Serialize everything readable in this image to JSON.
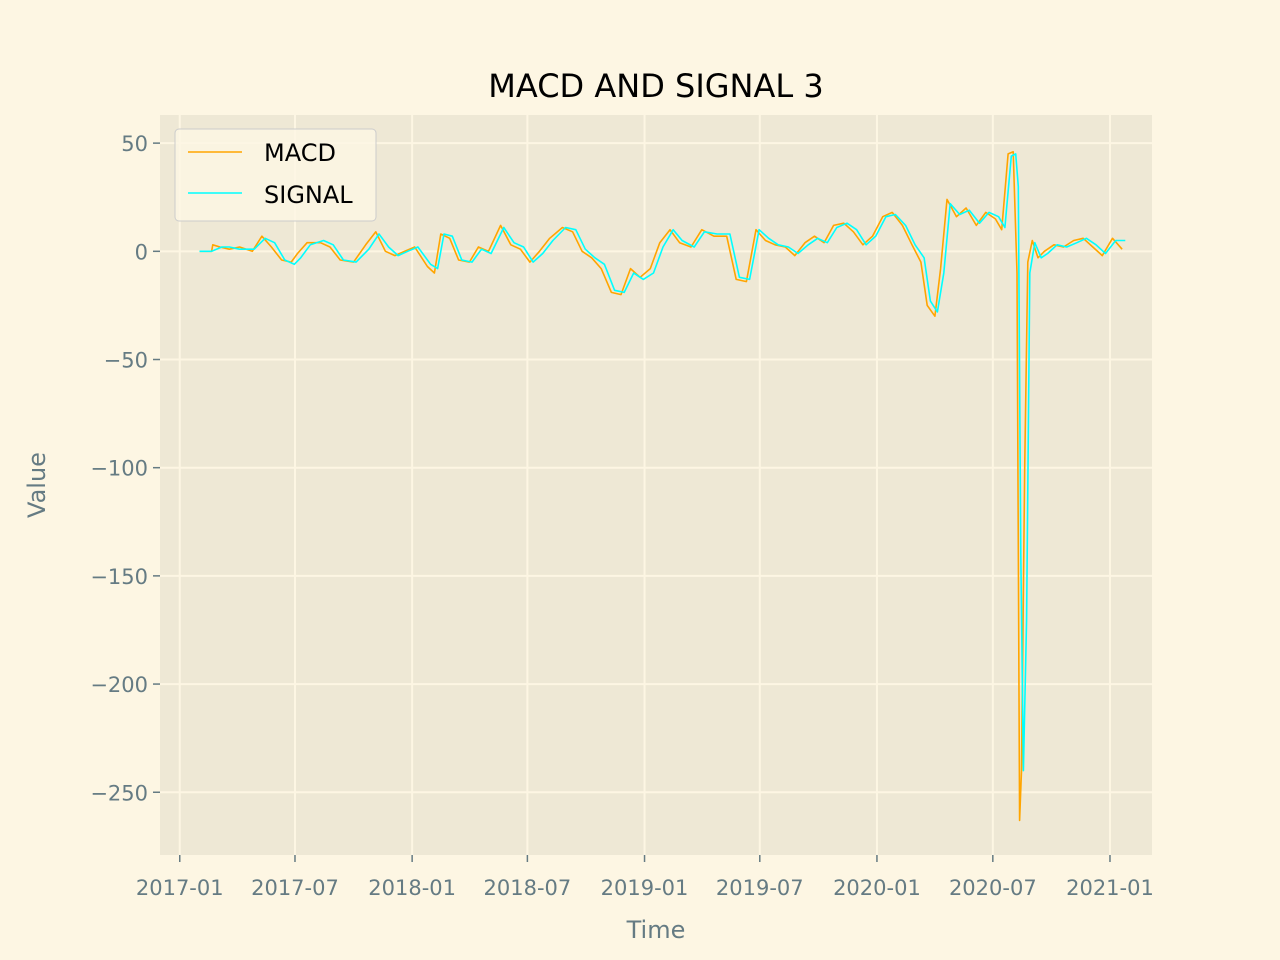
{
  "chart_data": {
    "type": "line",
    "title": "MACD AND SIGNAL 3",
    "xlabel": "Time",
    "ylabel": "Value",
    "x_ticks": [
      {
        "date": "2017-01-01",
        "label": "2017-01"
      },
      {
        "date": "2017-07-01",
        "label": "2017-07"
      },
      {
        "date": "2018-01-01",
        "label": "2018-01"
      },
      {
        "date": "2018-07-01",
        "label": "2018-07"
      },
      {
        "date": "2019-01-01",
        "label": "2019-01"
      },
      {
        "date": "2019-07-01",
        "label": "2019-07"
      },
      {
        "date": "2020-01-01",
        "label": "2020-01"
      },
      {
        "date": "2020-07-01",
        "label": "2020-07"
      },
      {
        "date": "2021-01-01",
        "label": "2021-01"
      }
    ],
    "y_ticks": [
      {
        "value": 50,
        "label": "50"
      },
      {
        "value": 0,
        "label": "0"
      },
      {
        "value": -50,
        "label": "−50"
      },
      {
        "value": -100,
        "label": "−100"
      },
      {
        "value": -150,
        "label": "−150"
      },
      {
        "value": -200,
        "label": "−200"
      },
      {
        "value": -250,
        "label": "−250"
      }
    ],
    "xlim": [
      "2016-12-01",
      "2021-03-08"
    ],
    "ylim": [
      -279,
      63
    ],
    "grid": true,
    "legend_position": "top-left",
    "colors": {
      "figure_bg": "#fdf6e3",
      "plot_bg": "#eee8d5",
      "grid": "#fdf6e3",
      "tick_text": "#657b83",
      "macd": "#ffa500",
      "signal": "#00ffff"
    },
    "series": [
      {
        "name": "MACD",
        "color": "#ffa500",
        "x": [
          "2017-02-01",
          "2017-02-20",
          "2017-02-22",
          "2017-03-05",
          "2017-03-20",
          "2017-04-05",
          "2017-04-25",
          "2017-05-10",
          "2017-05-25",
          "2017-06-10",
          "2017-06-25",
          "2017-07-05",
          "2017-07-20",
          "2017-08-10",
          "2017-08-25",
          "2017-09-10",
          "2017-10-01",
          "2017-10-20",
          "2017-11-05",
          "2017-11-20",
          "2017-12-05",
          "2017-12-20",
          "2018-01-05",
          "2018-01-25",
          "2018-02-05",
          "2018-02-15",
          "2018-03-01",
          "2018-03-15",
          "2018-04-01",
          "2018-04-15",
          "2018-05-01",
          "2018-05-20",
          "2018-06-05",
          "2018-06-20",
          "2018-07-05",
          "2018-07-20",
          "2018-08-05",
          "2018-08-25",
          "2018-09-10",
          "2018-09-25",
          "2018-10-10",
          "2018-10-25",
          "2018-11-10",
          "2018-11-25",
          "2018-12-10",
          "2018-12-25",
          "2019-01-10",
          "2019-01-25",
          "2019-02-10",
          "2019-02-25",
          "2019-03-15",
          "2019-04-01",
          "2019-04-20",
          "2019-05-10",
          "2019-05-25",
          "2019-06-10",
          "2019-06-25",
          "2019-07-10",
          "2019-07-25",
          "2019-08-10",
          "2019-08-25",
          "2019-09-10",
          "2019-09-25",
          "2019-10-10",
          "2019-10-25",
          "2019-11-10",
          "2019-11-25",
          "2019-12-10",
          "2019-12-25",
          "2020-01-10",
          "2020-01-25",
          "2020-02-10",
          "2020-02-25",
          "2020-03-10",
          "2020-03-20",
          "2020-04-01",
          "2020-04-10",
          "2020-04-20",
          "2020-05-05",
          "2020-05-20",
          "2020-06-05",
          "2020-06-20",
          "2020-07-05",
          "2020-07-15",
          "2020-07-25",
          "2020-08-02",
          "2020-08-08",
          "2020-08-12",
          "2020-08-15",
          "2020-08-20",
          "2020-08-25",
          "2020-09-01",
          "2020-09-10",
          "2020-09-20",
          "2020-10-05",
          "2020-10-20",
          "2020-11-05",
          "2020-11-20",
          "2020-12-05",
          "2020-12-20",
          "2021-01-05",
          "2021-01-20"
        ],
        "values": [
          0,
          0,
          3,
          2,
          1,
          2,
          0,
          7,
          2,
          -4,
          -5,
          -1,
          4,
          4,
          2,
          -4,
          -5,
          3,
          9,
          0,
          -2,
          0,
          2,
          -7,
          -10,
          8,
          6,
          -4,
          -5,
          2,
          0,
          12,
          3,
          1,
          -5,
          0,
          6,
          11,
          9,
          0,
          -3,
          -8,
          -19,
          -20,
          -8,
          -12,
          -8,
          4,
          10,
          4,
          2,
          10,
          7,
          7,
          -13,
          -14,
          10,
          5,
          3,
          2,
          -2,
          4,
          7,
          4,
          12,
          13,
          9,
          3,
          7,
          16,
          18,
          12,
          3,
          -5,
          -25,
          -30,
          -8,
          24,
          16,
          20,
          12,
          18,
          15,
          10,
          45,
          46,
          -10,
          -263,
          -240,
          -100,
          -5,
          5,
          -3,
          0,
          3,
          2,
          5,
          6,
          2,
          -2,
          6,
          1
        ]
      },
      {
        "name": "SIGNAL",
        "color": "#00ffff",
        "x": [
          "2017-02-01",
          "2017-02-20",
          "2017-03-08",
          "2017-03-20",
          "2017-04-05",
          "2017-04-28",
          "2017-05-15",
          "2017-05-30",
          "2017-06-15",
          "2017-06-30",
          "2017-07-10",
          "2017-07-25",
          "2017-08-15",
          "2017-08-30",
          "2017-09-15",
          "2017-10-05",
          "2017-10-25",
          "2017-11-10",
          "2017-11-25",
          "2017-12-10",
          "2017-12-25",
          "2018-01-10",
          "2018-01-30",
          "2018-02-10",
          "2018-02-20",
          "2018-03-05",
          "2018-03-20",
          "2018-04-05",
          "2018-04-20",
          "2018-05-05",
          "2018-05-25",
          "2018-06-10",
          "2018-06-25",
          "2018-07-10",
          "2018-07-25",
          "2018-08-10",
          "2018-08-30",
          "2018-09-15",
          "2018-09-30",
          "2018-10-15",
          "2018-10-30",
          "2018-11-15",
          "2018-11-30",
          "2018-12-15",
          "2018-12-30",
          "2019-01-15",
          "2019-01-30",
          "2019-02-15",
          "2019-03-01",
          "2019-03-20",
          "2019-04-05",
          "2019-04-25",
          "2019-05-15",
          "2019-05-30",
          "2019-06-15",
          "2019-06-30",
          "2019-07-15",
          "2019-07-30",
          "2019-08-15",
          "2019-08-30",
          "2019-09-15",
          "2019-09-30",
          "2019-10-15",
          "2019-10-30",
          "2019-11-15",
          "2019-11-30",
          "2019-12-15",
          "2019-12-30",
          "2020-01-15",
          "2020-01-30",
          "2020-02-15",
          "2020-03-01",
          "2020-03-15",
          "2020-03-25",
          "2020-04-05",
          "2020-04-15",
          "2020-04-25",
          "2020-05-10",
          "2020-05-25",
          "2020-06-10",
          "2020-06-25",
          "2020-07-10",
          "2020-07-20",
          "2020-07-30",
          "2020-08-06",
          "2020-08-10",
          "2020-08-14",
          "2020-08-18",
          "2020-08-23",
          "2020-08-28",
          "2020-09-05",
          "2020-09-15",
          "2020-09-25",
          "2020-10-10",
          "2020-10-25",
          "2020-11-10",
          "2020-11-25",
          "2020-12-10",
          "2020-12-25",
          "2021-01-10",
          "2021-01-25"
        ],
        "values": [
          0,
          0,
          2,
          2,
          1,
          1,
          6,
          4,
          -4,
          -6,
          -3,
          3,
          5,
          3,
          -4,
          -5,
          1,
          8,
          2,
          -2,
          0,
          2,
          -6,
          -8,
          8,
          7,
          -4,
          -5,
          1,
          -1,
          11,
          4,
          2,
          -5,
          -1,
          5,
          11,
          10,
          1,
          -3,
          -6,
          -18,
          -19,
          -10,
          -13,
          -10,
          2,
          10,
          5,
          2,
          9,
          8,
          8,
          -12,
          -13,
          10,
          6,
          3,
          2,
          -1,
          3,
          6,
          4,
          11,
          13,
          10,
          3,
          7,
          16,
          17,
          12,
          3,
          -3,
          -23,
          -28,
          -10,
          22,
          17,
          19,
          13,
          18,
          16,
          11,
          44,
          45,
          30,
          -140,
          -240,
          -170,
          -10,
          4,
          -3,
          -1,
          3,
          2,
          4,
          6,
          3,
          -1,
          5,
          5
        ]
      }
    ]
  }
}
